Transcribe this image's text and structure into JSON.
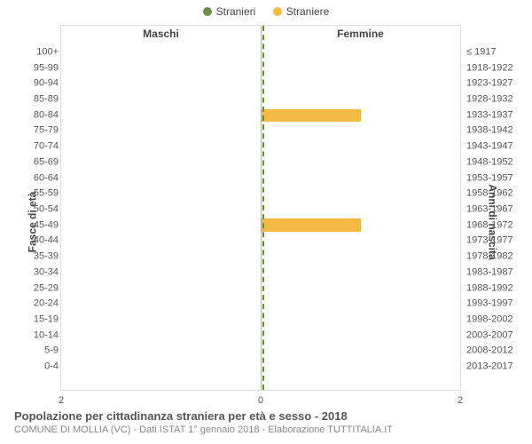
{
  "legend": {
    "male": {
      "label": "Stranieri",
      "color": "#6b8e4a"
    },
    "female": {
      "label": "Straniere",
      "color": "#f4b942"
    }
  },
  "chart": {
    "type": "population-pyramid",
    "left_title": "Maschi",
    "right_title": "Femmine",
    "left_axis_title": "Fasce di età",
    "right_axis_title": "Anni di nascita",
    "categories": [
      "100+",
      "95-99",
      "90-94",
      "85-89",
      "80-84",
      "75-79",
      "70-74",
      "65-69",
      "60-64",
      "55-59",
      "50-54",
      "45-49",
      "40-44",
      "35-39",
      "30-34",
      "25-29",
      "20-24",
      "15-19",
      "10-14",
      "5-9",
      "0-4"
    ],
    "birth_years": [
      "≤ 1917",
      "1918-1922",
      "1923-1927",
      "1928-1932",
      "1933-1937",
      "1938-1942",
      "1943-1947",
      "1948-1952",
      "1953-1957",
      "1958-1962",
      "1963-1967",
      "1968-1972",
      "1973-1977",
      "1978-1982",
      "1983-1987",
      "1988-1992",
      "1993-1997",
      "1998-2002",
      "2003-2007",
      "2008-2012",
      "2013-2017"
    ],
    "male_values": [
      0,
      0,
      0,
      0,
      0,
      0,
      0,
      0,
      0,
      0,
      0,
      0,
      0,
      0,
      0,
      0,
      0,
      0,
      0,
      0,
      0
    ],
    "female_values": [
      0,
      0,
      0,
      0,
      1,
      0,
      0,
      0,
      0,
      0,
      0,
      1,
      0,
      0,
      0,
      0,
      0,
      0,
      0,
      0,
      0
    ],
    "x_max": 2,
    "x_ticks_left": [
      "2"
    ],
    "x_ticks_center": "0",
    "x_ticks_right": [
      "2"
    ],
    "grid_color": "#dcdcdc",
    "divider_color": "#6b8e23",
    "divider_color_solid": "#b0b0b0",
    "background_color": "#ffffff",
    "male_bar_color": "#6b8e4a",
    "female_bar_color": "#f4b942",
    "tick_fontsize": 11,
    "label_fontsize": 12
  },
  "footer": {
    "title": "Popolazione per cittadinanza straniera per età e sesso - 2018",
    "subtitle": "COMUNE DI MOLLIA (VC) - Dati ISTAT 1° gennaio 2018 - Elaborazione TUTTITALIA.IT"
  }
}
